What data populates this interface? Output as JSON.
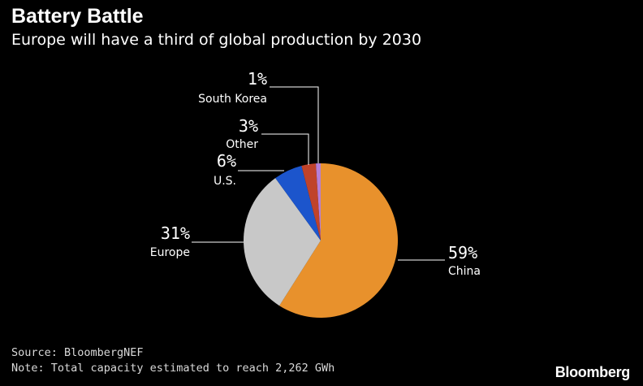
{
  "header": {
    "title": "Battery Battle",
    "subtitle": "Europe will have a third of global production by 2030"
  },
  "chart_data": {
    "type": "pie",
    "title": "Battery Battle",
    "subtitle": "Europe will have a third of global production by 2030",
    "slices": [
      {
        "label": "China",
        "value": 59,
        "value_label": "59%",
        "color": "#e8912c"
      },
      {
        "label": "Europe",
        "value": 31,
        "value_label": "31%",
        "color": "#c8c8c8"
      },
      {
        "label": "U.S.",
        "value": 6,
        "value_label": "6%",
        "color": "#1c55cc"
      },
      {
        "label": "Other",
        "value": 3,
        "value_label": "3%",
        "color": "#c0432a"
      },
      {
        "label": "South Korea",
        "value": 1,
        "value_label": "1%",
        "color": "#b57fd6"
      }
    ],
    "legend": "none"
  },
  "footer": {
    "source": "Source: BloombergNEF",
    "note": "Note: Total capacity estimated to reach 2,262 GWh",
    "brand": "Bloomberg"
  }
}
